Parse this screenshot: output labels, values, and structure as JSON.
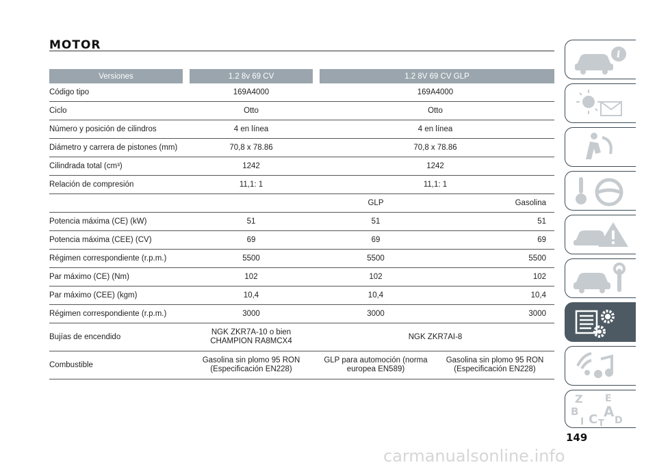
{
  "page": {
    "title": "MOTOR",
    "page_number": "149",
    "watermark": "carmanualsonline.info"
  },
  "table": {
    "headers": [
      "Versiones",
      "1.2 8v 69 CV",
      "1.2 8V 69 CV GLP"
    ],
    "rows": [
      {
        "label": "Código tipo",
        "c1": "169A4000",
        "c23": "169A4000"
      },
      {
        "label": "Ciclo",
        "c1": "Otto",
        "c23": "Otto"
      },
      {
        "label": "Número y posición de cilindros",
        "c1": "4 en línea",
        "c23": "4 en línea"
      },
      {
        "label": "Diámetro y carrera de pistones (mm)",
        "c1": "70,8 x 78.86",
        "c23": "70,8 x 78.86"
      },
      {
        "label": "Cilindrada total (cm³)",
        "c1": "1242",
        "c23": "1242"
      },
      {
        "label": "Relación de compresión",
        "c1": "11,1: 1",
        "c23": "11,1: 1"
      }
    ],
    "fuel_header": {
      "glp": "GLP",
      "gasolina": "Gasolina"
    },
    "split_rows": [
      {
        "label": "Potencia máxima (CE) (kW)",
        "c1": "51",
        "c2": "51",
        "c3": "51"
      },
      {
        "label": "Potencia máxima (CEE) (CV)",
        "c1": "69",
        "c2": "69",
        "c3": "69"
      },
      {
        "label": "Régimen correspondiente (r.p.m.)",
        "c1": "5500",
        "c2": "5500",
        "c3": "5500"
      },
      {
        "label": "Par máximo (CE) (Nm)",
        "c1": "102",
        "c2": "102",
        "c3": "102"
      },
      {
        "label": "Par máximo (CEE) (kgm)",
        "c1": "10,4",
        "c2": "10,4",
        "c3": "10,4"
      },
      {
        "label": "Régimen correspondiente (r.p.m.)",
        "c1": "3000",
        "c2": "3000",
        "c3": "3000"
      }
    ],
    "bujias": {
      "label": "Bujías de encendido",
      "c1_line1": "NGK ZKR7A-10 o bien",
      "c1_line2": "CHAMPION RA8MCX4",
      "c23": "NGK ZKR7AI-8"
    },
    "combustible": {
      "label": "Combustible",
      "c1_line1": "Gasolina sin plomo 95 RON",
      "c1_line2": "(Especificación EN228)",
      "c2_line1": "GLP para automoción (norma",
      "c2_line2": "europea EN589)",
      "c3_line1": "Gasolina sin plomo 95 RON",
      "c3_line2": "(Especificación EN228)"
    }
  },
  "sidebar": {
    "tabs": [
      {
        "icon": "car-info-icon"
      },
      {
        "icon": "lights-message-icon"
      },
      {
        "icon": "airbag-safety-icon"
      },
      {
        "icon": "key-steering-wheel-icon"
      },
      {
        "icon": "car-warning-icon"
      },
      {
        "icon": "car-maintenance-icon"
      },
      {
        "icon": "specifications-gear-icon"
      },
      {
        "icon": "multimedia-icon"
      },
      {
        "icon": "alphabetical-index-icon"
      }
    ],
    "active_tab": 6,
    "accent": "#4d5a63",
    "inactive_icon_color": "#c6cbcf"
  },
  "colors": {
    "header_bg": "#9aa5ad",
    "rule": "#555555"
  }
}
